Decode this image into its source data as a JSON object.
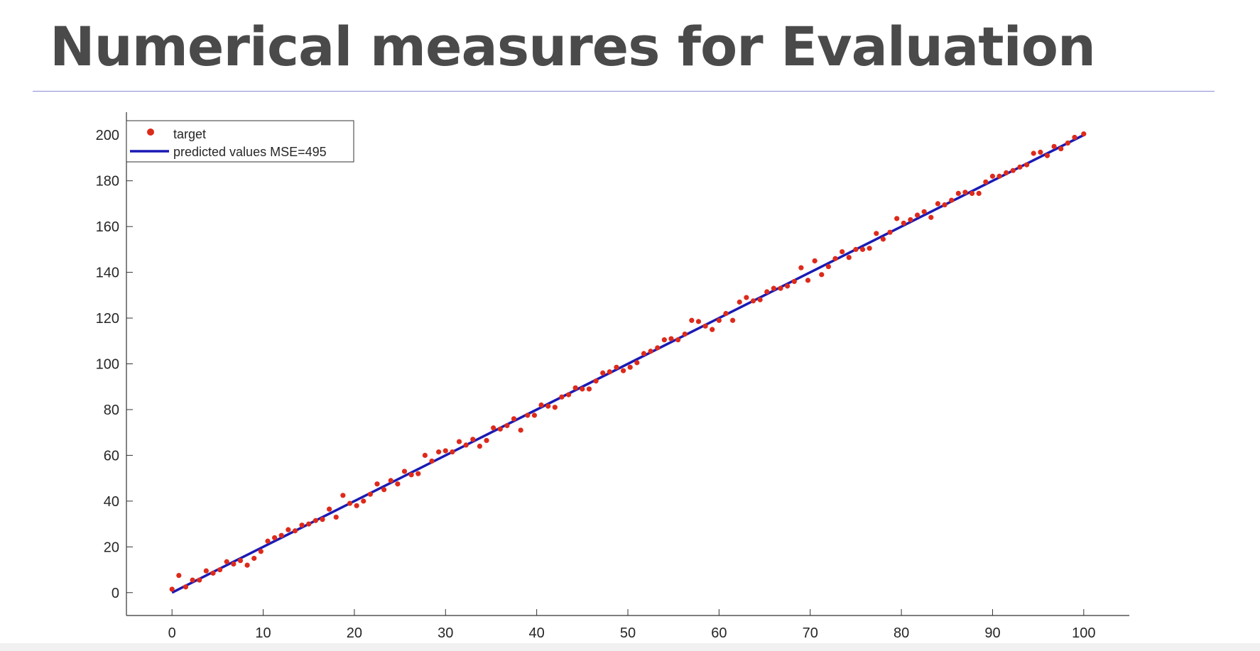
{
  "slide": {
    "title": "Numerical measures for Evaluation"
  },
  "colors": {
    "target": "#dd2a1b",
    "predicted": "#1a1ab4",
    "axis": "#333333",
    "title": "#4a4a4a",
    "rule": "#8c8cd8"
  },
  "chart_data": {
    "type": "scatter",
    "title": "",
    "xlabel": "",
    "ylabel": "",
    "xlim": [
      -5,
      105
    ],
    "ylim": [
      -10,
      210
    ],
    "xticks": [
      0,
      10,
      20,
      30,
      40,
      50,
      60,
      70,
      80,
      90,
      100
    ],
    "yticks": [
      0,
      20,
      40,
      60,
      80,
      100,
      120,
      140,
      160,
      180,
      200
    ],
    "grid": false,
    "legend_position": "top-left",
    "series": [
      {
        "name": "target",
        "kind": "scatter",
        "x": [
          0,
          0.75,
          1.5,
          2.25,
          3,
          3.75,
          4.5,
          5.25,
          6,
          6.75,
          7.5,
          8.25,
          9,
          9.75,
          10.5,
          11.25,
          12,
          12.75,
          13.5,
          14.25,
          15,
          15.75,
          16.5,
          17.25,
          18,
          18.75,
          19.5,
          20.25,
          21,
          21.75,
          22.5,
          23.25,
          24,
          24.75,
          25.5,
          26.25,
          27,
          27.75,
          28.5,
          29.25,
          30,
          30.75,
          31.5,
          32.25,
          33,
          33.75,
          34.5,
          35.25,
          36,
          36.75,
          37.5,
          38.25,
          39,
          39.75,
          40.5,
          41.25,
          42,
          42.75,
          43.5,
          44.25,
          45,
          45.75,
          46.5,
          47.25,
          48,
          48.75,
          49.5,
          50.25,
          51,
          51.75,
          52.5,
          53.25,
          54,
          54.75,
          55.5,
          56.25,
          57,
          57.75,
          58.5,
          59.25,
          60,
          60.75,
          61.5,
          62.25,
          63,
          63.75,
          64.5,
          65.25,
          66,
          66.75,
          67.5,
          68.25,
          69,
          69.75,
          70.5,
          71.25,
          72,
          72.75,
          73.5,
          74.25,
          75,
          75.75,
          76.5,
          77.25,
          78,
          78.75,
          79.5,
          80.25,
          81,
          81.75,
          82.5,
          83.25,
          84,
          84.75,
          85.5,
          86.25,
          87,
          87.75,
          88.5,
          89.25,
          90,
          90.75,
          91.5,
          92.25,
          93,
          93.75,
          94.5,
          95.25,
          96,
          96.75,
          97.5,
          98.25,
          99,
          100
        ],
        "y": [
          1.5,
          7.5,
          2.5,
          5.5,
          5.5,
          9.5,
          8.5,
          10,
          13.5,
          12.5,
          14,
          12,
          15,
          18,
          22.5,
          24,
          25,
          27.5,
          27,
          29.5,
          30,
          31.5,
          32,
          36.5,
          33,
          42.5,
          39,
          38,
          40,
          43,
          47.5,
          45,
          49,
          47.5,
          53,
          51.5,
          52,
          60,
          57.5,
          61.5,
          62,
          61.5,
          66,
          64.5,
          67,
          64,
          66.5,
          72,
          71.5,
          73,
          76,
          71,
          77.5,
          77.5,
          82,
          81.5,
          81,
          85.5,
          86.5,
          89.5,
          89,
          89,
          92.5,
          96,
          96.5,
          98.5,
          97,
          98.5,
          100.5,
          104.5,
          105.5,
          107,
          110.5,
          111,
          110.5,
          113,
          119,
          118.5,
          116.5,
          115,
          119,
          122,
          119,
          127,
          129,
          127.5,
          128,
          131.5,
          133,
          133,
          134,
          136,
          142,
          136.5,
          145,
          139,
          142.5,
          146,
          149,
          146.5,
          150,
          150,
          150.5,
          157,
          154.5,
          157.5,
          163.5,
          161.5,
          163,
          165,
          166.5,
          164,
          170,
          169.5,
          171.5,
          174.5,
          175,
          174.5,
          174.5,
          179.5,
          182,
          182,
          183.5,
          184.5,
          186,
          187,
          192,
          192.5,
          191,
          195,
          194,
          196.5,
          199,
          200.5
        ]
      },
      {
        "name": "predicted values MSE=495",
        "kind": "line",
        "x": [
          0,
          100
        ],
        "y": [
          0,
          200
        ]
      }
    ]
  }
}
